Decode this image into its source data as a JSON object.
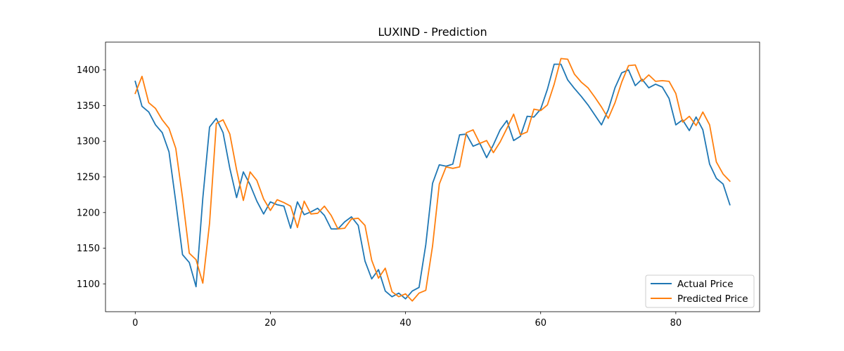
{
  "chart_data": {
    "type": "line",
    "title": "LUXIND - Prediction",
    "xlabel": "",
    "ylabel": "",
    "xlim": [
      -4.4,
      92.4
    ],
    "ylim": [
      1061,
      1439
    ],
    "xticks": [
      0,
      20,
      40,
      60,
      80
    ],
    "yticks": [
      1100,
      1150,
      1200,
      1250,
      1300,
      1350,
      1400
    ],
    "grid": false,
    "legend_position": "lower-right",
    "series": [
      {
        "name": "Actual Price",
        "color": "#1f77b4",
        "values": [
          1384,
          1349,
          1341,
          1323,
          1312,
          1285,
          1215,
          1141,
          1130,
          1096,
          1220,
          1320,
          1332,
          1312,
          1262,
          1221,
          1257,
          1239,
          1216,
          1198,
          1215,
          1211,
          1209,
          1178,
          1215,
          1197,
          1201,
          1206,
          1196,
          1177,
          1177,
          1187,
          1194,
          1182,
          1132,
          1107,
          1120,
          1090,
          1082,
          1087,
          1079,
          1090,
          1095,
          1155,
          1241,
          1267,
          1265,
          1268,
          1309,
          1310,
          1293,
          1297,
          1277,
          1295,
          1316,
          1329,
          1301,
          1307,
          1335,
          1334,
          1345,
          1373,
          1408,
          1408,
          1386,
          1374,
          1363,
          1351,
          1337,
          1323,
          1344,
          1375,
          1396,
          1400,
          1378,
          1387,
          1375,
          1380,
          1376,
          1360,
          1323,
          1330,
          1315,
          1334,
          1316,
          1268,
          1248,
          1240,
          1211
        ]
      },
      {
        "name": "Predicted Price",
        "color": "#ff7f0e",
        "values": [
          1367,
          1391,
          1354,
          1346,
          1330,
          1318,
          1290,
          1221,
          1143,
          1134,
          1101,
          1185,
          1325,
          1330,
          1310,
          1260,
          1217,
          1257,
          1245,
          1219,
          1203,
          1218,
          1214,
          1209,
          1179,
          1216,
          1198,
          1199,
          1209,
          1196,
          1177,
          1178,
          1191,
          1192,
          1182,
          1133,
          1108,
          1122,
          1089,
          1082,
          1086,
          1076,
          1087,
          1091,
          1153,
          1240,
          1264,
          1262,
          1264,
          1312,
          1316,
          1297,
          1301,
          1284,
          1299,
          1318,
          1338,
          1309,
          1313,
          1345,
          1343,
          1351,
          1380,
          1416,
          1415,
          1394,
          1383,
          1375,
          1362,
          1348,
          1332,
          1354,
          1383,
          1406,
          1407,
          1384,
          1393,
          1384,
          1385,
          1384,
          1367,
          1327,
          1335,
          1322,
          1341,
          1323,
          1271,
          1254,
          1244
        ]
      }
    ]
  }
}
